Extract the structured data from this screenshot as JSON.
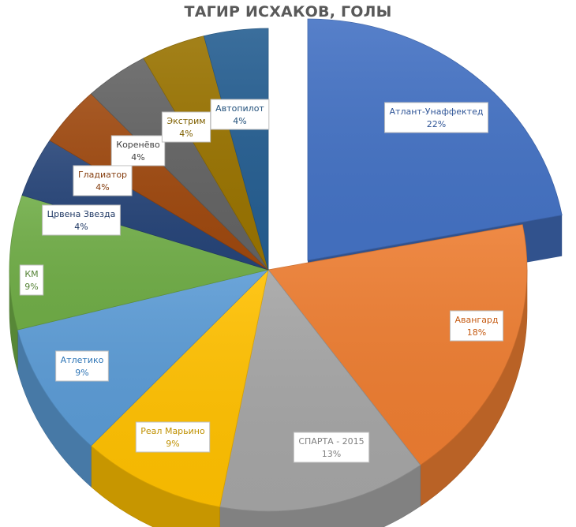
{
  "chart_data": {
    "type": "pie",
    "title": "ТАГИР ИСХАКОВ, ГОЛЫ",
    "slices": [
      {
        "name": "Атлант-Унаффектед",
        "percent": 22,
        "label": "22%",
        "color": "#4472C4",
        "text_color": "#2F5597",
        "exploded": true
      },
      {
        "name": "Авангард",
        "percent": 18,
        "label": "18%",
        "color": "#ED7D31",
        "text_color": "#C55A11"
      },
      {
        "name": "СПАРТА - 2015",
        "percent": 13,
        "label": "13%",
        "color": "#A5A5A5",
        "text_color": "#7F7F7F"
      },
      {
        "name": "Реал Марьино",
        "percent": 9,
        "label": "9%",
        "color": "#FFC000",
        "text_color": "#BF9000"
      },
      {
        "name": "Атлетико",
        "percent": 9,
        "label": "9%",
        "color": "#5B9BD5",
        "text_color": "#2E75B6"
      },
      {
        "name": "КМ",
        "percent": 9,
        "label": "9%",
        "color": "#70AD47",
        "text_color": "#548235"
      },
      {
        "name": "Црвена Звезда",
        "percent": 4,
        "label": "4%",
        "color": "#264478",
        "text_color": "#1F3864"
      },
      {
        "name": "Гладиатор",
        "percent": 4,
        "label": "4%",
        "color": "#9E480E",
        "text_color": "#843C0C"
      },
      {
        "name": "Коренëво",
        "percent": 4,
        "label": "4%",
        "color": "#636363",
        "text_color": "#404040"
      },
      {
        "name": "Экстрим",
        "percent": 4,
        "label": "4%",
        "color": "#997300",
        "text_color": "#7F6000"
      },
      {
        "name": "Автопилот",
        "percent": 4,
        "label": "4%",
        "color": "#255E91",
        "text_color": "#1F4E79"
      }
    ]
  }
}
